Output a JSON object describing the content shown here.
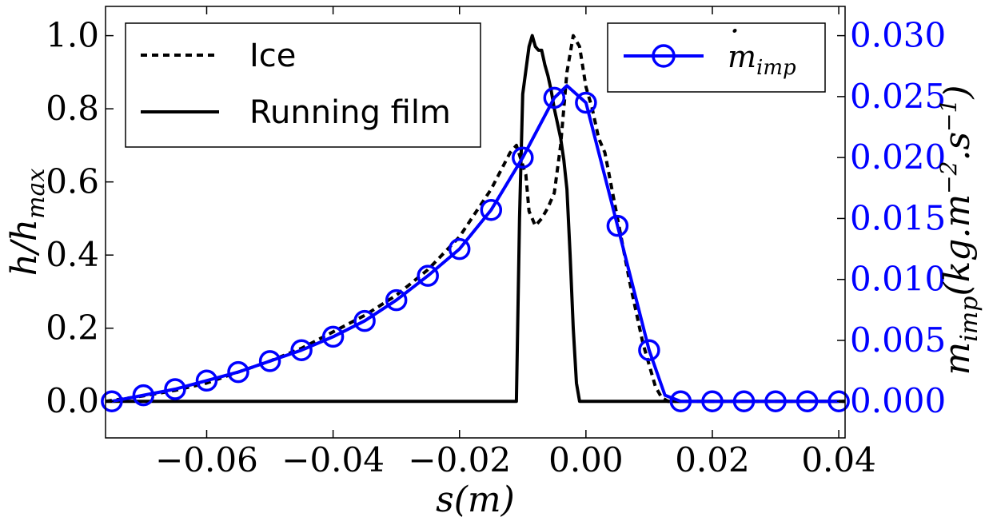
{
  "chart_data": {
    "type": "line",
    "xlabel": "s(m)",
    "ylabel_left": "h/h_max",
    "ylabel_right": "ṁ_imp(kg.m^-2.s^-1)",
    "xlim": [
      -0.076,
      0.041
    ],
    "ylim_left": [
      -0.1,
      1.08
    ],
    "ylim_right": [
      -0.003,
      0.0324
    ],
    "x_ticks": [
      -0.06,
      -0.04,
      -0.02,
      0.0,
      0.02,
      0.04
    ],
    "x_tick_labels": [
      "−0.06",
      "−0.04",
      "−0.02",
      "0.00",
      "0.02",
      "0.04"
    ],
    "y_left_ticks": [
      0.0,
      0.2,
      0.4,
      0.6,
      0.8,
      1.0
    ],
    "y_left_tick_labels": [
      "0.0",
      "0.2",
      "0.4",
      "0.6",
      "0.8",
      "1.0"
    ],
    "y_right_ticks": [
      0.0,
      0.005,
      0.01,
      0.015,
      0.02,
      0.025,
      0.03
    ],
    "y_right_tick_labels": [
      "0.000",
      "0.005",
      "0.010",
      "0.015",
      "0.020",
      "0.025",
      "0.030"
    ],
    "grid": false,
    "colors": {
      "ice": "#000000",
      "film": "#000000",
      "impinge": "#0000ff"
    },
    "legends": [
      {
        "placement": "upper-left",
        "entries": [
          "Ice",
          "Running film"
        ]
      },
      {
        "placement": "upper-right",
        "entries": [
          "ṁ_imp"
        ]
      }
    ],
    "series": [
      {
        "name": "Ice",
        "axis": "left",
        "style": "dashed",
        "x": [
          -0.076,
          -0.07,
          -0.065,
          -0.06,
          -0.055,
          -0.05,
          -0.045,
          -0.04,
          -0.035,
          -0.03,
          -0.025,
          -0.02,
          -0.015,
          -0.012,
          -0.011,
          -0.0095,
          -0.009,
          -0.008,
          -0.007,
          -0.006,
          -0.005,
          -0.004,
          -0.003,
          -0.002,
          -0.001,
          0.0,
          0.001,
          0.002,
          0.003,
          0.005,
          0.007,
          0.009,
          0.011,
          0.012,
          0.013,
          0.041
        ],
        "y": [
          0.0,
          0.015,
          0.03,
          0.05,
          0.08,
          0.11,
          0.145,
          0.19,
          0.235,
          0.29,
          0.36,
          0.45,
          0.58,
          0.68,
          0.7,
          0.62,
          0.52,
          0.48,
          0.5,
          0.53,
          0.57,
          0.7,
          0.9,
          1.0,
          0.97,
          0.86,
          0.8,
          0.72,
          0.68,
          0.5,
          0.32,
          0.16,
          0.04,
          0.01,
          0.0,
          0.0
        ]
      },
      {
        "name": "Running film",
        "axis": "left",
        "style": "solid",
        "x": [
          -0.076,
          -0.011,
          -0.0105,
          -0.01,
          -0.009,
          -0.0085,
          -0.008,
          -0.0075,
          -0.007,
          -0.0065,
          -0.006,
          -0.0055,
          -0.005,
          -0.0045,
          -0.004,
          -0.0035,
          -0.003,
          -0.0025,
          -0.002,
          -0.0015,
          -0.001,
          0.041
        ],
        "y": [
          0.0,
          0.0,
          0.5,
          0.84,
          0.97,
          1.0,
          0.97,
          0.96,
          0.96,
          0.92,
          0.89,
          0.85,
          0.8,
          0.76,
          0.72,
          0.66,
          0.58,
          0.4,
          0.2,
          0.05,
          0.0,
          0.0
        ]
      },
      {
        "name": "ṁ_imp",
        "axis": "right",
        "style": "solid-with-circle-markers",
        "x": [
          -0.075,
          -0.07,
          -0.065,
          -0.06,
          -0.055,
          -0.05,
          -0.045,
          -0.04,
          -0.035,
          -0.03,
          -0.025,
          -0.02,
          -0.015,
          -0.01,
          -0.005,
          -0.003,
          0.0,
          0.005,
          0.01,
          0.0125,
          0.015,
          0.02,
          0.025,
          0.03,
          0.035,
          0.04
        ],
        "y": [
          0.0,
          0.0005,
          0.001,
          0.0017,
          0.0024,
          0.0033,
          0.0042,
          0.0053,
          0.0066,
          0.0083,
          0.0103,
          0.0125,
          0.0157,
          0.02,
          0.0249,
          0.0259,
          0.0245,
          0.0144,
          0.0042,
          0.0005,
          0.0,
          0.0,
          0.0,
          0.0,
          0.0,
          0.0
        ],
        "markers_x": [
          -0.075,
          -0.07,
          -0.065,
          -0.06,
          -0.055,
          -0.05,
          -0.045,
          -0.04,
          -0.035,
          -0.03,
          -0.025,
          -0.02,
          -0.015,
          -0.01,
          -0.005,
          0.0,
          0.005,
          0.01,
          0.015,
          0.02,
          0.025,
          0.03,
          0.035,
          0.04
        ],
        "markers_y": [
          0.0,
          0.0005,
          0.001,
          0.0017,
          0.0024,
          0.0033,
          0.0042,
          0.0053,
          0.0066,
          0.0083,
          0.0103,
          0.0125,
          0.0157,
          0.02,
          0.0249,
          0.0245,
          0.0144,
          0.0042,
          0.0,
          0.0,
          0.0,
          0.0,
          0.0,
          0.0
        ]
      }
    ]
  }
}
